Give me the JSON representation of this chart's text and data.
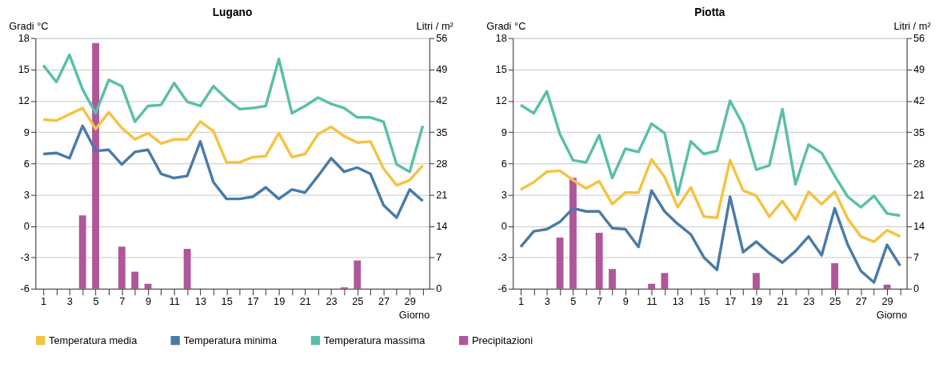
{
  "chart_data": [
    {
      "type": "line",
      "title": "Lugano",
      "xlabel": "Giorno",
      "ylabel": "Gradi °C",
      "y2label": "Litri / m²",
      "x": [
        1,
        2,
        3,
        4,
        5,
        6,
        7,
        8,
        9,
        10,
        11,
        12,
        13,
        14,
        15,
        16,
        17,
        18,
        19,
        20,
        21,
        22,
        23,
        24,
        25,
        26,
        27,
        28,
        29,
        30
      ],
      "xlim": [
        0.4,
        30.5
      ],
      "xticks": [
        1,
        {
          "value": 2,
          "label": null
        },
        3,
        {
          "value": 4,
          "label": null
        },
        5,
        {
          "value": 6,
          "label": null
        },
        7,
        {
          "value": 8,
          "label": null
        },
        9,
        {
          "value": 10,
          "label": null
        },
        11,
        {
          "value": 12,
          "label": null
        },
        13,
        {
          "value": 14,
          "label": null
        },
        15,
        {
          "value": 16,
          "label": null
        },
        17,
        {
          "value": 18,
          "label": null
        },
        19,
        {
          "value": 20,
          "label": null
        },
        21,
        {
          "value": 22,
          "label": null
        },
        23,
        {
          "value": 24,
          "label": null
        },
        25,
        {
          "value": 26,
          "label": null
        },
        27,
        {
          "value": 28,
          "label": null
        },
        29,
        {
          "value": 30,
          "label": null
        }
      ],
      "ylim": [
        -6,
        18
      ],
      "yticks": [
        -6,
        -3,
        0,
        3,
        6,
        9,
        12,
        15,
        18
      ],
      "y2lim": [
        0,
        56
      ],
      "y2ticks": [
        0,
        7,
        14,
        21,
        28,
        35,
        42,
        49,
        56
      ],
      "grid": "y",
      "legend": "bottom",
      "marker": "none",
      "line_style": "solid",
      "series": [
        {
          "name": "Temperatura media",
          "color": "#f5c342",
          "values": [
            10.2,
            10.1,
            10.7,
            11.3,
            9.3,
            10.9,
            9.4,
            8.3,
            8.9,
            7.9,
            8.3,
            8.3,
            10.0,
            9.1,
            6.1,
            6.1,
            6.6,
            6.7,
            8.9,
            6.6,
            6.9,
            8.8,
            9.5,
            8.6,
            8.0,
            8.1,
            5.5,
            3.9,
            4.4,
            5.8
          ]
        },
        {
          "name": "Temperatura minima",
          "color": "#4a7ba7",
          "values": [
            6.9,
            7.0,
            6.5,
            9.6,
            7.2,
            7.3,
            5.9,
            7.1,
            7.3,
            5.0,
            4.6,
            4.8,
            8.1,
            4.2,
            2.6,
            2.6,
            2.8,
            3.7,
            2.6,
            3.5,
            3.2,
            4.8,
            6.5,
            5.2,
            5.6,
            5.0,
            2.0,
            0.8,
            3.5,
            2.4
          ]
        },
        {
          "name": "Temperatura massima",
          "color": "#5bbfa8",
          "values": [
            15.4,
            13.8,
            16.4,
            13.1,
            10.8,
            14.0,
            13.4,
            10.0,
            11.5,
            11.6,
            13.7,
            11.9,
            11.5,
            13.4,
            12.2,
            11.2,
            11.3,
            11.5,
            16.0,
            10.8,
            11.5,
            12.3,
            11.7,
            11.3,
            10.4,
            10.4,
            10.0,
            5.9,
            5.2,
            9.6
          ]
        },
        {
          "name": "Precipitazioni",
          "type": "bar",
          "axis": "y2",
          "color": "#b0569a",
          "values": [
            0,
            0,
            0,
            16.4,
            54.9,
            0,
            9.4,
            3.8,
            1.1,
            0,
            0,
            8.9,
            0,
            0,
            0,
            0,
            0,
            0,
            0,
            0,
            0,
            0,
            0,
            0.3,
            6.3,
            0,
            0,
            0,
            0,
            0
          ]
        }
      ]
    },
    {
      "type": "line",
      "title": "Piotta",
      "xlabel": "Giorno",
      "ylabel": "Gradi °C",
      "y2label": "Litri / m²",
      "x": [
        1,
        2,
        3,
        4,
        5,
        6,
        7,
        8,
        9,
        10,
        11,
        12,
        13,
        14,
        15,
        16,
        17,
        18,
        19,
        20,
        21,
        22,
        23,
        24,
        25,
        26,
        27,
        28,
        29,
        30
      ],
      "xlim": [
        0.4,
        30.5
      ],
      "xticks": [
        1,
        {
          "value": 2,
          "label": null
        },
        3,
        {
          "value": 4,
          "label": null
        },
        5,
        {
          "value": 6,
          "label": null
        },
        7,
        {
          "value": 8,
          "label": null
        },
        9,
        {
          "value": 10,
          "label": null
        },
        11,
        {
          "value": 12,
          "label": null
        },
        13,
        {
          "value": 14,
          "label": null
        },
        15,
        {
          "value": 16,
          "label": null
        },
        17,
        {
          "value": 18,
          "label": null
        },
        19,
        {
          "value": 20,
          "label": null
        },
        21,
        {
          "value": 22,
          "label": null
        },
        23,
        {
          "value": 24,
          "label": null
        },
        25,
        {
          "value": 26,
          "label": null
        },
        27,
        {
          "value": 28,
          "label": null
        },
        29,
        {
          "value": 30,
          "label": null
        }
      ],
      "ylim": [
        -6,
        18
      ],
      "yticks": [
        -6,
        -3,
        0,
        3,
        6,
        9,
        12,
        15,
        18
      ],
      "y2lim": [
        0,
        56
      ],
      "y2ticks": [
        0,
        7,
        14,
        21,
        28,
        35,
        42,
        49,
        56
      ],
      "grid": "y",
      "legend": "bottom",
      "marker": "none",
      "line_style": "solid",
      "series": [
        {
          "name": "Temperatura media",
          "color": "#f5c342",
          "values": [
            3.5,
            4.2,
            5.2,
            5.3,
            4.4,
            3.6,
            4.3,
            2.1,
            3.2,
            3.2,
            6.4,
            4.7,
            1.8,
            3.7,
            0.9,
            0.8,
            6.3,
            3.4,
            2.9,
            0.9,
            2.4,
            0.6,
            3.3,
            2.1,
            3.3,
            0.7,
            -1.0,
            -1.5,
            -0.4,
            -1.0
          ]
        },
        {
          "name": "Temperatura minima",
          "color": "#4a7ba7",
          "values": [
            -2.0,
            -0.5,
            -0.3,
            0.4,
            1.7,
            1.4,
            1.4,
            -0.2,
            -0.3,
            -2.0,
            3.4,
            1.4,
            0.2,
            -0.8,
            -3.0,
            -4.2,
            2.8,
            -2.5,
            -1.5,
            -2.6,
            -3.5,
            -2.4,
            -1.0,
            -2.8,
            1.7,
            -1.8,
            -4.3,
            -5.4,
            -1.8,
            -3.8
          ]
        },
        {
          "name": "Temperatura massima",
          "color": "#5bbfa8",
          "values": [
            11.6,
            10.8,
            12.9,
            8.8,
            6.3,
            6.1,
            8.7,
            4.6,
            7.4,
            7.1,
            9.8,
            8.9,
            3.0,
            8.1,
            6.9,
            7.2,
            12.0,
            9.7,
            5.4,
            5.8,
            11.2,
            4.0,
            7.8,
            7.0,
            4.8,
            2.8,
            1.8,
            2.9,
            1.2,
            1.0
          ]
        },
        {
          "name": "Precipitazioni",
          "type": "bar",
          "axis": "y2",
          "color": "#b0569a",
          "values": [
            0,
            0,
            0,
            11.4,
            24.8,
            0,
            12.5,
            4.4,
            0,
            0,
            1.1,
            3.5,
            0,
            0,
            0,
            0,
            0,
            0,
            3.5,
            0,
            0,
            0,
            0,
            0,
            5.7,
            0,
            0,
            0,
            0.9,
            0
          ]
        }
      ]
    }
  ]
}
